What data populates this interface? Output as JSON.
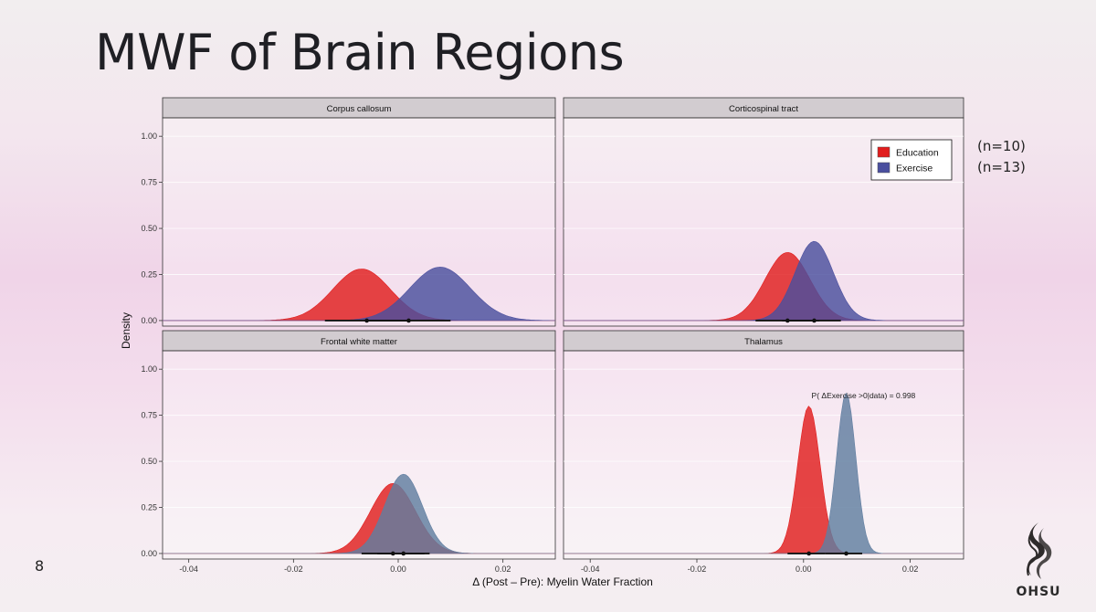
{
  "slide": {
    "title": "MWF of Brain Regions",
    "number": "8",
    "logo_text": "OHSU",
    "sample_sizes": [
      "(n=10)",
      "(n=13)"
    ]
  },
  "chart_data": {
    "type": "area",
    "title": "MWF of Brain Regions",
    "xlabel": "Δ (Post – Pre): Myelin Water Fraction",
    "ylabel": "Density",
    "xlim": [
      -0.045,
      0.03
    ],
    "ylim": [
      -0.03,
      1.1
    ],
    "x_ticks": [
      -0.04,
      -0.02,
      0.0,
      0.02
    ],
    "x_tick_labels": [
      "-0.04",
      "-0.02",
      "0.00",
      "0.02"
    ],
    "y_ticks": [
      0.0,
      0.25,
      0.5,
      0.75,
      1.0
    ],
    "y_tick_labels": [
      "0.00",
      "0.25",
      "0.50",
      "0.75",
      "1.00"
    ],
    "legend": {
      "position": "top-right",
      "entries": [
        {
          "name": "Education",
          "color": "#e11d1d"
        },
        {
          "name": "Exercise",
          "color": "#4a4f9e"
        }
      ]
    },
    "panels": [
      {
        "name": "Corpus callosum",
        "series": [
          {
            "name": "Education",
            "peak_x": -0.007,
            "peak_density": 0.28,
            "sd": 0.0055,
            "color": "#e11d1d",
            "point": -0.006,
            "interval": [
              -0.014,
              0.002
            ]
          },
          {
            "name": "Exercise",
            "peak_x": 0.008,
            "peak_density": 0.29,
            "sd": 0.0058,
            "color": "#4a4f9e",
            "point": 0.002,
            "interval": [
              -0.006,
              0.01
            ]
          }
        ]
      },
      {
        "name": "Corticospinal tract",
        "series": [
          {
            "name": "Education",
            "peak_x": -0.003,
            "peak_density": 0.37,
            "sd": 0.0042,
            "color": "#e11d1d",
            "point": -0.003,
            "interval": [
              -0.009,
              0.003
            ]
          },
          {
            "name": "Exercise",
            "peak_x": 0.002,
            "peak_density": 0.43,
            "sd": 0.0036,
            "color": "#4a4f9e",
            "point": 0.002,
            "interval": [
              -0.004,
              0.007
            ]
          }
        ]
      },
      {
        "name": "Frontal white matter",
        "series": [
          {
            "name": "Education",
            "peak_x": -0.001,
            "peak_density": 0.38,
            "sd": 0.0043,
            "color": "#e11d1d",
            "point": -0.001,
            "interval": [
              -0.007,
              0.005
            ]
          },
          {
            "name": "Exercise",
            "peak_x": 0.001,
            "peak_density": 0.43,
            "sd": 0.0036,
            "color": "#607ea0",
            "point": 0.001,
            "interval": [
              -0.004,
              0.006
            ]
          }
        ]
      },
      {
        "name": "Thalamus",
        "annotation": "P( ΔExercise >0|data) = 0.998",
        "series": [
          {
            "name": "Education",
            "peak_x": 0.001,
            "peak_density": 0.8,
            "sd": 0.0021,
            "color": "#e11d1d",
            "point": 0.001,
            "interval": [
              -0.003,
              0.004
            ]
          },
          {
            "name": "Exercise",
            "peak_x": 0.008,
            "peak_density": 0.87,
            "sd": 0.0018,
            "color": "#607ea0",
            "point": 0.008,
            "interval": [
              0.004,
              0.011
            ]
          }
        ]
      }
    ]
  }
}
